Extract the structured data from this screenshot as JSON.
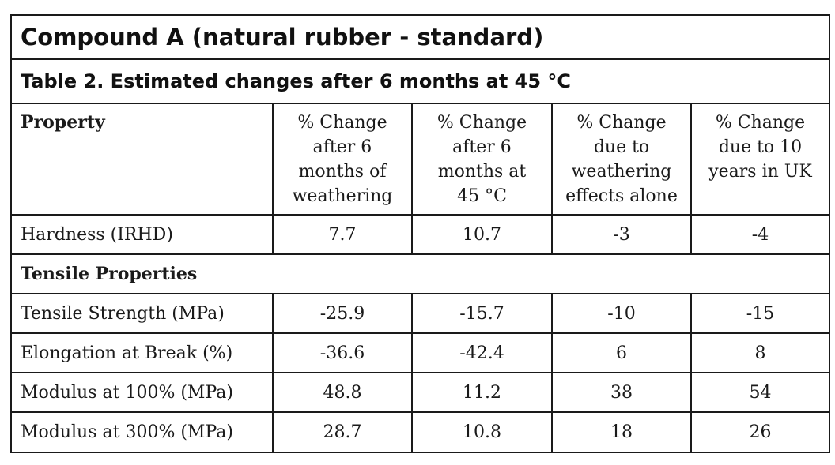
{
  "title": "Compound A (natural rubber - standard)",
  "caption": "Table 2. Estimated changes after 6 months at 45 °C",
  "columns": [
    {
      "lines": [
        "Property"
      ]
    },
    {
      "lines": [
        "% Change",
        "after 6",
        "months of",
        "weathering"
      ]
    },
    {
      "lines": [
        "% Change",
        "after 6",
        "months at",
        "45 °C"
      ]
    },
    {
      "lines": [
        "% Change",
        "due to",
        "weathering",
        "effects alone"
      ]
    },
    {
      "lines": [
        "% Change",
        "due to 10",
        "years in UK"
      ]
    }
  ],
  "rows": [
    {
      "label": "Hardness (IRHD)",
      "values": [
        "7.7",
        "10.7",
        "-3",
        "-4"
      ]
    },
    {
      "section": "Tensile Properties"
    },
    {
      "label": "Tensile Strength (MPa)",
      "values": [
        "-25.9",
        "-15.7",
        "-10",
        "-15"
      ]
    },
    {
      "label": "Elongation at Break (%)",
      "values": [
        "-36.6",
        "-42.4",
        "6",
        "8"
      ]
    },
    {
      "label": "Modulus at 100% (MPa)",
      "values": [
        "48.8",
        "11.2",
        "38",
        "54"
      ]
    },
    {
      "label": "Modulus at 300% (MPa)",
      "values": [
        "28.7",
        "10.8",
        "18",
        "26"
      ]
    }
  ]
}
